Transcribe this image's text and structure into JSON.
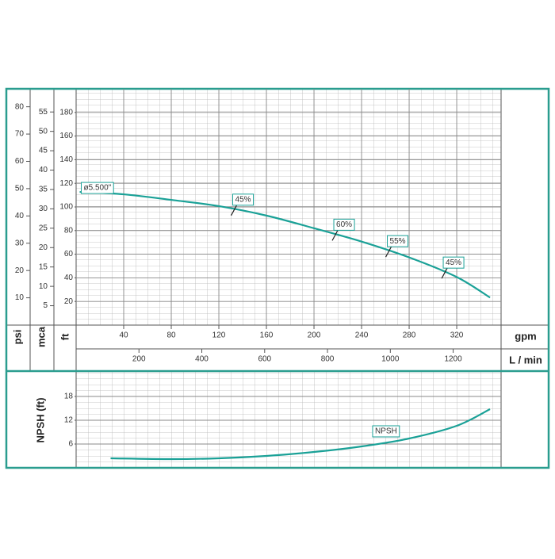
{
  "chart_data": [
    {
      "type": "line",
      "x_label": "gpm",
      "x2_label": "L / min",
      "xlim": [
        0,
        357.3
      ],
      "xticks": [
        40,
        80,
        120,
        160,
        200,
        240,
        280,
        320
      ],
      "x2lim": [
        0,
        1352.5
      ],
      "x2ticks": [
        200,
        400,
        600,
        800,
        1000,
        1200
      ],
      "y_label": "ft",
      "ylim": [
        0,
        200
      ],
      "yticks": [
        20,
        40,
        60,
        80,
        100,
        120,
        140,
        160,
        180
      ],
      "y2_label": "mca",
      "y2lim": [
        0,
        60.98
      ],
      "y2ticks": [
        5,
        10,
        15,
        20,
        25,
        30,
        35,
        40,
        45,
        50,
        55
      ],
      "y3_label": "psi",
      "y3lim": [
        0,
        86.58
      ],
      "y3ticks": [
        10,
        20,
        30,
        40,
        50,
        60,
        70,
        80
      ],
      "grid": true,
      "x": [
        3,
        40,
        80,
        120,
        160,
        200,
        240,
        280,
        320,
        348
      ],
      "series": [
        {
          "name": "ø5.500\"",
          "color": "#1aa197",
          "values": [
            112.7,
            110.7,
            106,
            100.7,
            92.7,
            82,
            70.7,
            57.3,
            40.7,
            23.3
          ]
        }
      ],
      "annotations": [
        {
          "text": "45%",
          "x": 133
        },
        {
          "text": "60%",
          "x": 218
        },
        {
          "text": "55%",
          "x": 263
        },
        {
          "text": "45%",
          "x": 310
        }
      ]
    },
    {
      "type": "line",
      "y_label": "NPSH (ft)",
      "ylim": [
        0,
        24.4
      ],
      "yticks": [
        6,
        12,
        18
      ],
      "xlim": [
        0,
        357.3
      ],
      "grid": true,
      "x": [
        29,
        80,
        120,
        160,
        200,
        240,
        280,
        320,
        348
      ],
      "series": [
        {
          "name": "NPSH",
          "color": "#1aa197",
          "values": [
            2.4,
            2.2,
            2.4,
            3.0,
            4.0,
            5.4,
            7.4,
            10.6,
            14.8
          ]
        }
      ]
    }
  ]
}
